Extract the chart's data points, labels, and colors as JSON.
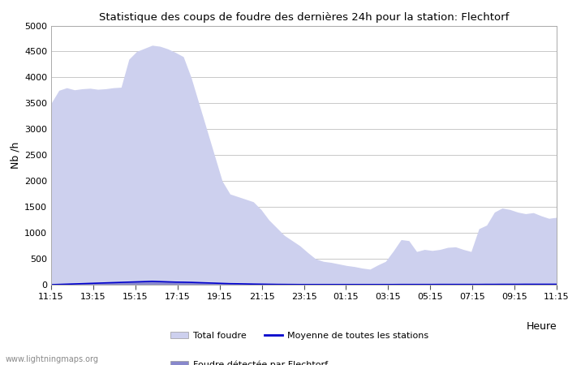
{
  "title": "Statistique des coups de foudre des dernières 24h pour la station: Flechtorf",
  "xlabel": "Heure",
  "ylabel": "Nb /h",
  "watermark": "www.lightningmaps.org",
  "ylim": [
    0,
    5000
  ],
  "x_labels": [
    "11:15",
    "13:15",
    "15:15",
    "17:15",
    "19:15",
    "21:15",
    "23:15",
    "01:15",
    "03:15",
    "05:15",
    "07:15",
    "09:15",
    "11:15"
  ],
  "total_foudre_color": "#cdd0ee",
  "flechtorf_color": "#8888cc",
  "moyenne_color": "#0000cc",
  "background_color": "#ffffff",
  "grid_color": "#c8c8c8",
  "total_foudre": [
    3500,
    3750,
    3800,
    3760,
    3780,
    3790,
    3770,
    3780,
    3800,
    3810,
    4350,
    4500,
    4560,
    4620,
    4600,
    4550,
    4480,
    4400,
    4000,
    3500,
    3000,
    2500,
    2000,
    1750,
    1700,
    1650,
    1600,
    1450,
    1250,
    1100,
    950,
    850,
    750,
    620,
    500,
    450,
    430,
    400,
    370,
    350,
    320,
    300,
    380,
    450,
    650,
    870,
    850,
    640,
    680,
    660,
    680,
    720,
    730,
    680,
    640,
    1080,
    1150,
    1400,
    1480,
    1450,
    1400,
    1370,
    1390,
    1330,
    1280,
    1300
  ],
  "flechtorf": [
    0,
    5,
    10,
    15,
    20,
    25,
    30,
    35,
    40,
    45,
    50,
    55,
    60,
    65,
    60,
    55,
    50,
    48,
    45,
    40,
    35,
    30,
    25,
    20,
    18,
    15,
    12,
    10,
    8,
    6,
    5,
    4,
    3,
    3,
    3,
    3,
    3,
    3,
    3,
    3,
    3,
    3,
    3,
    3,
    3,
    4,
    4,
    4,
    4,
    4,
    5,
    5,
    5,
    5,
    5,
    5,
    6,
    6,
    7,
    7,
    7,
    8,
    8,
    8,
    8,
    8
  ],
  "moyenne": [
    0,
    5,
    10,
    15,
    20,
    25,
    30,
    35,
    40,
    45,
    50,
    55,
    60,
    65,
    60,
    55,
    50,
    48,
    45,
    40,
    35,
    30,
    25,
    20,
    18,
    15,
    12,
    10,
    8,
    6,
    5,
    4,
    3,
    3,
    3,
    3,
    3,
    3,
    3,
    3,
    3,
    3,
    3,
    3,
    3,
    4,
    4,
    4,
    4,
    4,
    5,
    5,
    5,
    5,
    5,
    5,
    6,
    6,
    7,
    7,
    7,
    8,
    8,
    8,
    8,
    8
  ],
  "n_points": 66,
  "legend_total_label": "Total foudre",
  "legend_moyenne_label": "Moyenne de toutes les stations",
  "legend_flech_label": "Foudre détectée par Flechtorf"
}
